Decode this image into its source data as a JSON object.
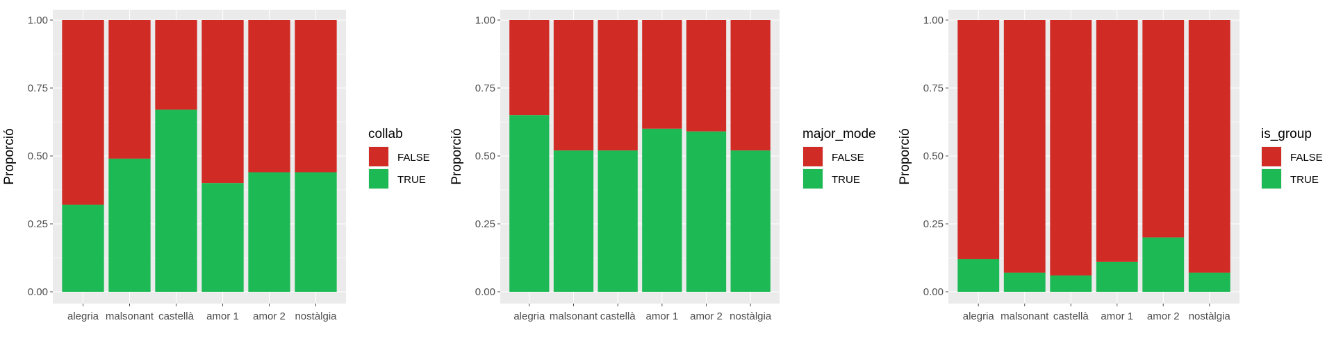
{
  "chart_data": [
    {
      "type": "bar",
      "stacked": true,
      "categories": [
        "alegria",
        "malsonant",
        "castellà",
        "amor 1",
        "amor 2",
        "nostàlgia"
      ],
      "ylabel": "Proporció",
      "xlabel": "",
      "ylim": [
        0,
        1
      ],
      "yticks": [
        "0.00",
        "0.25",
        "0.50",
        "0.75",
        "1.00"
      ],
      "grid": true,
      "legend_title": "collab",
      "legend_position": "right",
      "series": [
        {
          "name": "TRUE",
          "color": "#1DB954",
          "values": [
            0.32,
            0.49,
            0.67,
            0.4,
            0.44,
            0.44
          ]
        },
        {
          "name": "FALSE",
          "color": "#D12B26",
          "values": [
            0.68,
            0.51,
            0.33,
            0.6,
            0.56,
            0.56
          ]
        }
      ]
    },
    {
      "type": "bar",
      "stacked": true,
      "categories": [
        "alegria",
        "malsonant",
        "castellà",
        "amor 1",
        "amor 2",
        "nostàlgia"
      ],
      "ylabel": "Proporció",
      "xlabel": "",
      "ylim": [
        0,
        1
      ],
      "yticks": [
        "0.00",
        "0.25",
        "0.50",
        "0.75",
        "1.00"
      ],
      "grid": true,
      "legend_title": "major_mode",
      "legend_position": "right",
      "series": [
        {
          "name": "TRUE",
          "color": "#1DB954",
          "values": [
            0.65,
            0.52,
            0.52,
            0.6,
            0.59,
            0.52
          ]
        },
        {
          "name": "FALSE",
          "color": "#D12B26",
          "values": [
            0.35,
            0.48,
            0.48,
            0.4,
            0.41,
            0.48
          ]
        }
      ]
    },
    {
      "type": "bar",
      "stacked": true,
      "categories": [
        "alegria",
        "malsonant",
        "castellà",
        "amor 1",
        "amor 2",
        "nostàlgia"
      ],
      "ylabel": "Proporció",
      "xlabel": "",
      "ylim": [
        0,
        1
      ],
      "yticks": [
        "0.00",
        "0.25",
        "0.50",
        "0.75",
        "1.00"
      ],
      "grid": true,
      "legend_title": "is_group",
      "legend_position": "right",
      "series": [
        {
          "name": "TRUE",
          "color": "#1DB954",
          "values": [
            0.12,
            0.07,
            0.06,
            0.11,
            0.2,
            0.07
          ]
        },
        {
          "name": "FALSE",
          "color": "#D12B26",
          "values": [
            0.88,
            0.93,
            0.94,
            0.89,
            0.8,
            0.93
          ]
        }
      ]
    }
  ]
}
